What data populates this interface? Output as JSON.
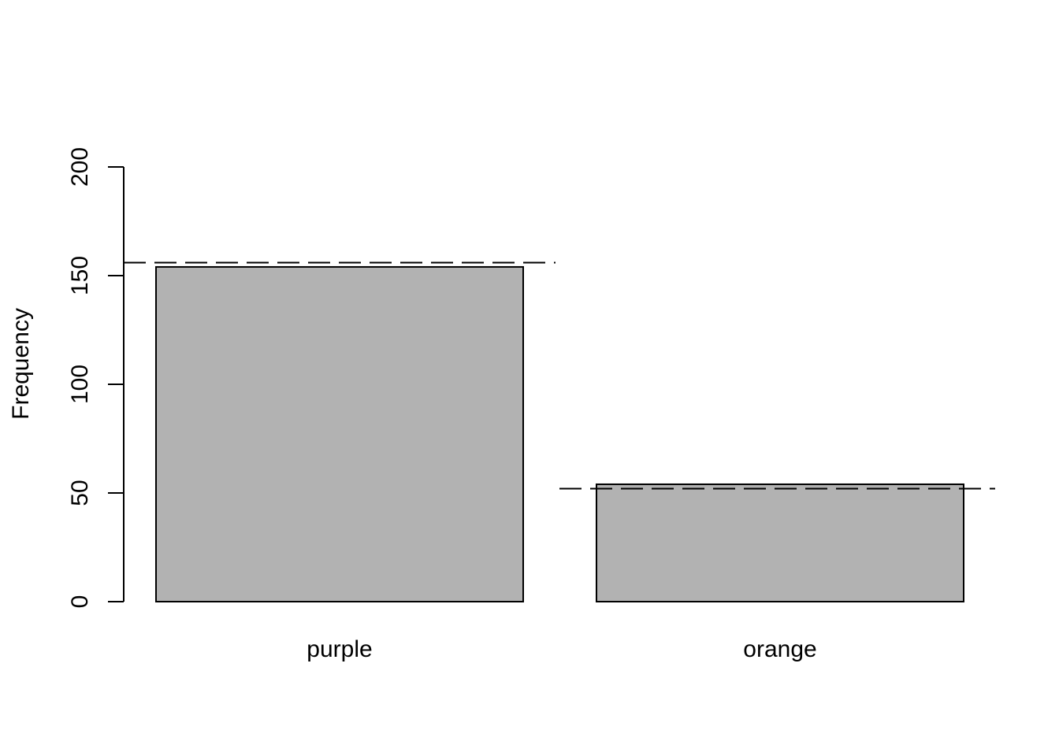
{
  "chart_data": {
    "type": "bar",
    "title": "",
    "xlabel": "",
    "ylabel": "Frequency",
    "categories": [
      "purple",
      "orange"
    ],
    "values": [
      154,
      54
    ],
    "reference_lines": [
      {
        "category": "purple",
        "value": 156,
        "style": "dashed"
      },
      {
        "category": "orange",
        "value": 52,
        "style": "dashed"
      }
    ],
    "ylim": [
      0,
      200
    ],
    "yticks": [
      0,
      50,
      100,
      150,
      200
    ],
    "grid": false,
    "legend": "none",
    "bar_color": "#b2b2b2",
    "border_color": "#000000"
  }
}
